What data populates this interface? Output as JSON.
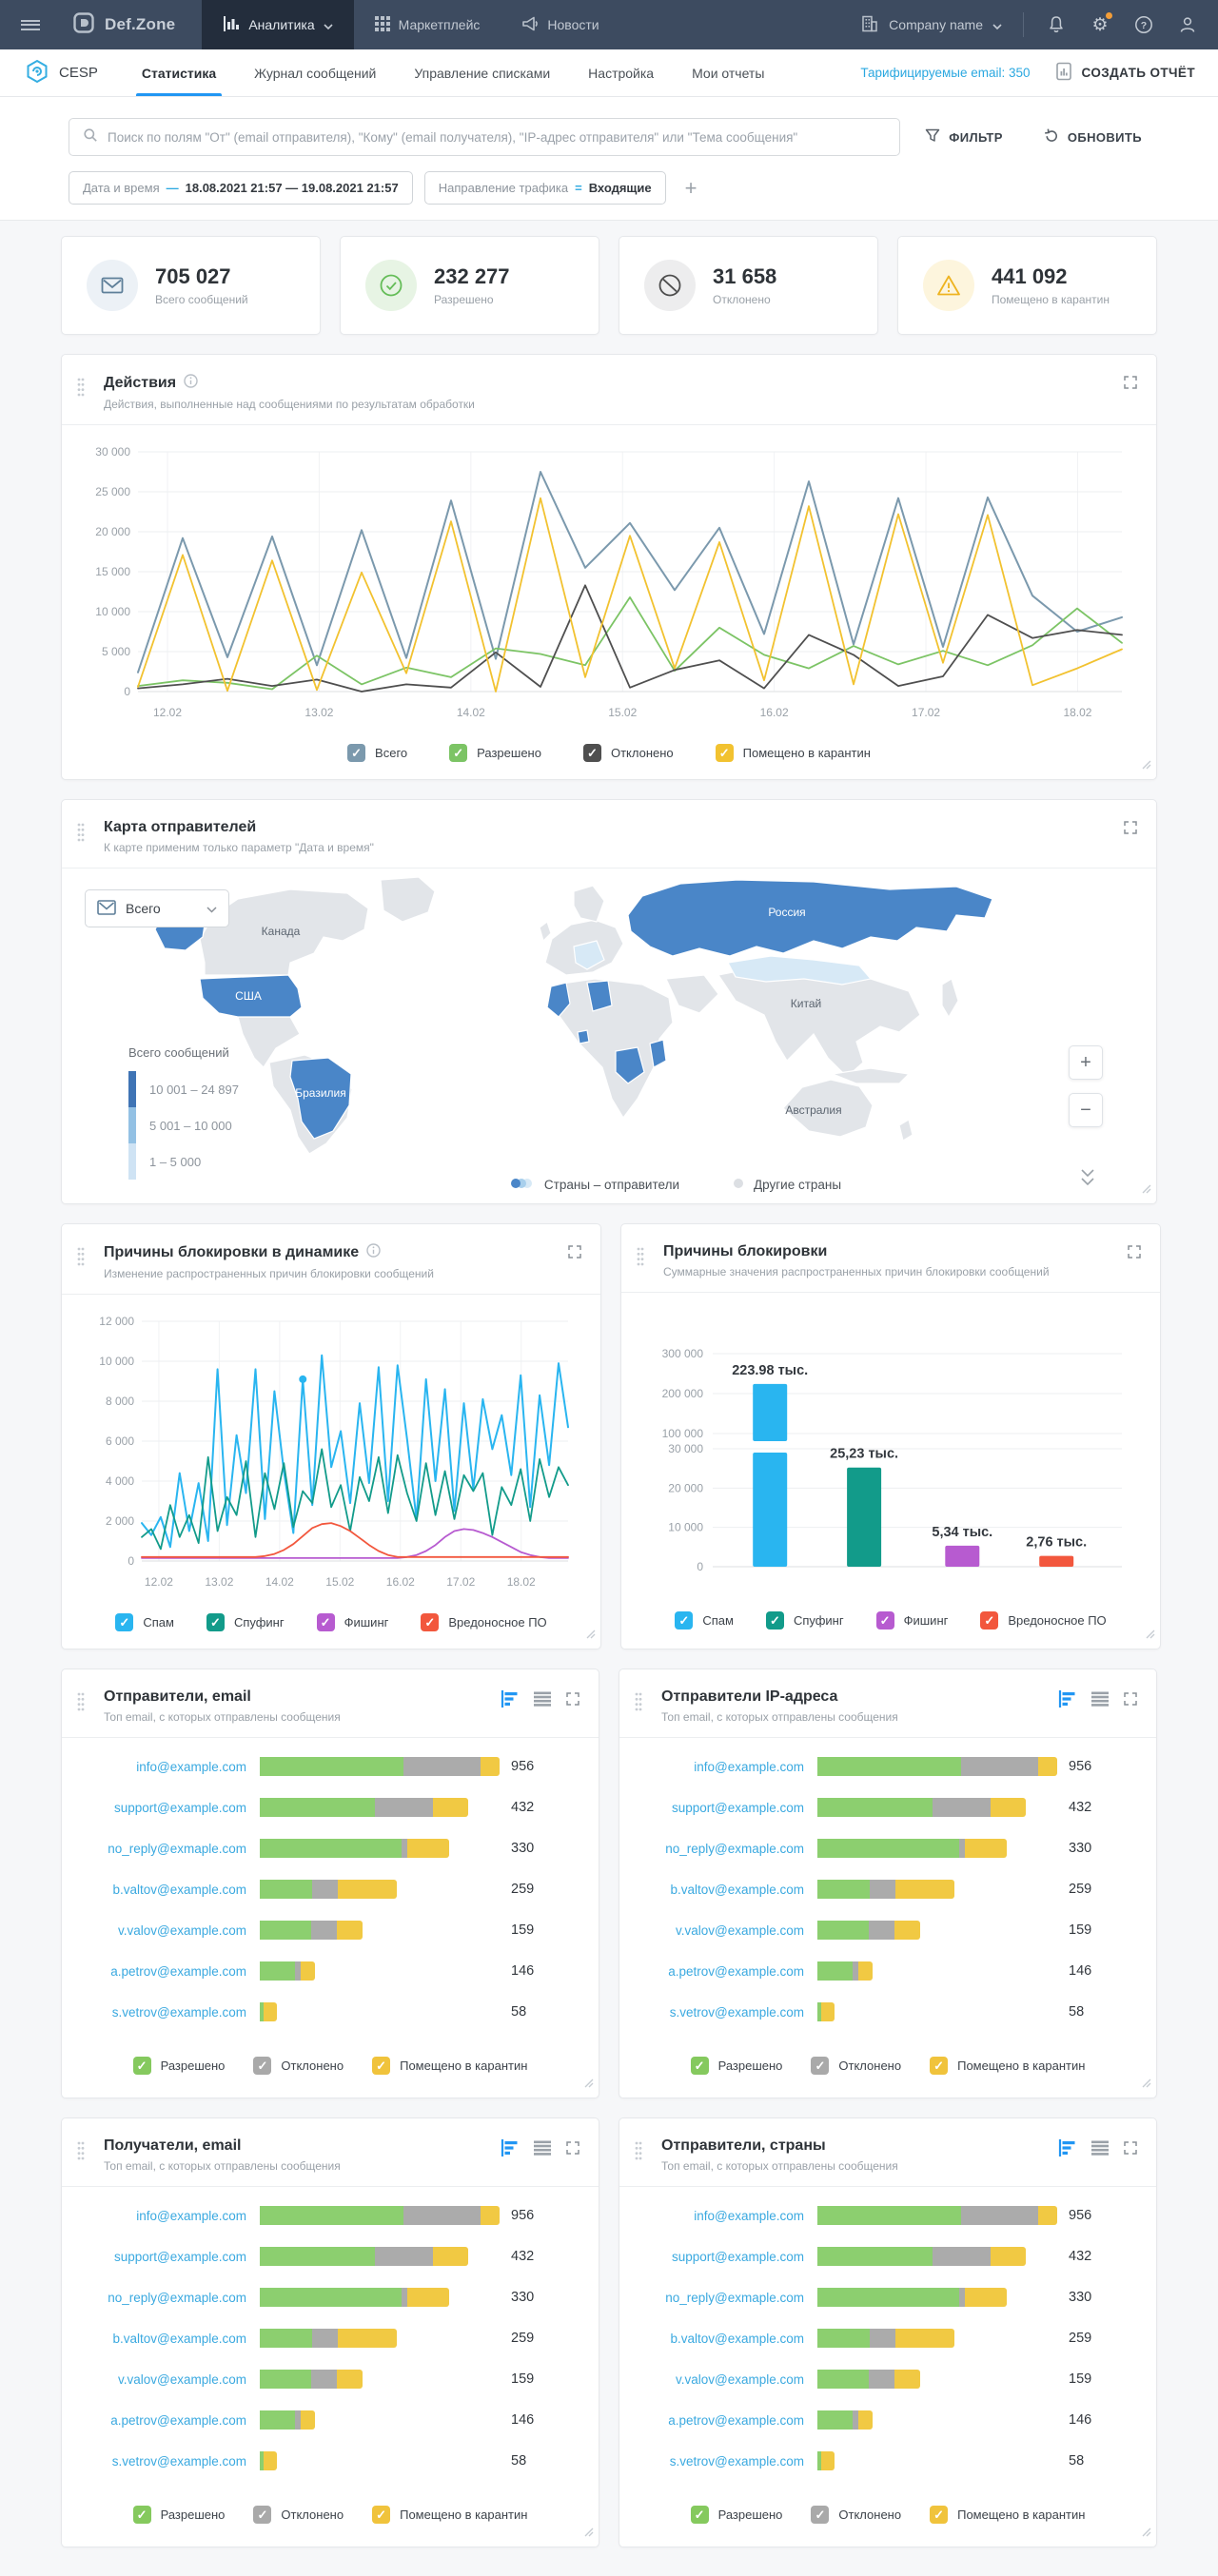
{
  "colors": {
    "accent": "#2196f3",
    "link_blue": "#3aa9e0",
    "navbar": "#3d4b60",
    "total_line": "#7b99ad",
    "allowed_green": "#7cc465",
    "rejected_dark": "#4f4f4f",
    "quarantine_yellow": "#f2c230",
    "spam_cyan": "#29b5f0",
    "spoofing_teal": "#129b8a",
    "phishing_purple": "#b75bd0",
    "malware_red": "#f2573d",
    "bar_green": "#8ccf6f",
    "bar_gray": "#ababab",
    "bar_yellow": "#f1c943",
    "map_blue": "#4a86c8",
    "map_blue_mid": "#a8cfec",
    "map_blue_light": "#d7e9f6",
    "map_land": "#e2e5e9"
  },
  "icons": {
    "check": "✓",
    "plus": "+",
    "gear": "⚙"
  },
  "topnav": {
    "brand": "Def.Zone",
    "items": [
      {
        "label": "Аналитика"
      },
      {
        "label": "Маркетплейс"
      },
      {
        "label": "Новости"
      }
    ],
    "company": "Company name"
  },
  "subnav": {
    "product": "CESP",
    "tabs": [
      {
        "label": "Статистика"
      },
      {
        "label": "Журнал сообщений"
      },
      {
        "label": "Управление списками"
      },
      {
        "label": "Настройка"
      },
      {
        "label": "Мои отчеты"
      }
    ],
    "billable_link": "Тарифицируемые email: 350",
    "create_report": "СОЗДАТЬ ОТЧЁТ"
  },
  "filters": {
    "search_placeholder": "Поиск по полям \"От\" (email отправителя), \"Кому\" (email получателя), \"IP-адрес отправителя\" или \"Тема сообщения\"",
    "filter_button": "ФИЛЬТР",
    "refresh_button": "ОБНОВИТЬ",
    "chips": [
      {
        "label": "Дата и время",
        "op": "—",
        "value": "18.08.2021 21:57 — 19.08.2021 21:57"
      },
      {
        "label": "Направление трафика",
        "op": "=",
        "value": "Входящие"
      }
    ]
  },
  "stats": [
    {
      "value": "705 027",
      "label": "Всего сообщений"
    },
    {
      "value": "232 277",
      "label": "Разрешено"
    },
    {
      "value": "31 658",
      "label": "Отклонено"
    },
    {
      "value": "441 092",
      "label": "Помещено в карантин"
    }
  ],
  "actions_card": {
    "title": "Действия",
    "subtitle": "Действия, выполненные над сообщениями по результатам обработки",
    "chart_data": {
      "type": "line",
      "x_labels": [
        "12.02",
        "13.02",
        "14.02",
        "15.02",
        "16.02",
        "17.02",
        "18.02"
      ],
      "y_ticks": [
        "0",
        "5 000",
        "10 000",
        "15 000",
        "20 000",
        "25 000",
        "30 000"
      ],
      "ymax": 30000,
      "series": [
        {
          "name": "Всего",
          "color": "#7b99ad",
          "width": 2,
          "values": [
            2400,
            19200,
            4300,
            19400,
            3300,
            20200,
            4200,
            23900,
            4100,
            27500,
            15500,
            21100,
            12700,
            20500,
            7200,
            26300,
            5900,
            24200,
            5600,
            24300,
            12000,
            7500,
            9300
          ]
        },
        {
          "name": "Разрешено",
          "color": "#7cc465",
          "width": 1.8,
          "values": [
            700,
            1400,
            1100,
            300,
            4500,
            900,
            3000,
            1800,
            5400,
            4700,
            3300,
            11800,
            2600,
            8000,
            4600,
            2900,
            5700,
            3400,
            5100,
            3300,
            5800,
            10400,
            6100
          ]
        },
        {
          "name": "Отклонено",
          "color": "#4f4f4f",
          "width": 1.8,
          "values": [
            400,
            900,
            1600,
            700,
            1500,
            0,
            900,
            500,
            4900,
            600,
            13300,
            500,
            2700,
            3900,
            400,
            7100,
            4600,
            700,
            1900,
            9600,
            6700,
            7700,
            7100
          ]
        },
        {
          "name": "Помещено в карантин",
          "color": "#f2c230",
          "width": 1.8,
          "values": [
            600,
            17100,
            100,
            16400,
            200,
            14900,
            2300,
            21300,
            0,
            24200,
            1800,
            19500,
            2900,
            18700,
            1400,
            23200,
            900,
            22200,
            3600,
            22100,
            800,
            2900,
            5300
          ]
        }
      ]
    }
  },
  "map_card": {
    "title": "Карта отправителей",
    "subtitle": "К карте применим только параметр \"Дата и время\"",
    "dropdown_value": "Всего",
    "legend_title": "Всего сообщений",
    "legend_ranges": [
      {
        "label": "10 001 – 24 897",
        "color": "#3f74b5"
      },
      {
        "label": "5 001 – 10 000",
        "color": "#93c1e4"
      },
      {
        "label": "1 – 5 000",
        "color": "#cfe3f4"
      }
    ],
    "bottom_legend": [
      {
        "label": "Страны – отправители"
      },
      {
        "label": "Другие страны"
      }
    ],
    "labels": [
      "Канада",
      "США",
      "Россия",
      "Китай",
      "Бразилия",
      "Австралия"
    ]
  },
  "dynamics_card": {
    "title": "Причины блокировки в динамике",
    "subtitle": "Изменение распространенных причин блокировки сообщений",
    "chart_data": {
      "type": "line",
      "x_labels": [
        "12.02",
        "13.02",
        "14.02",
        "15.02",
        "16.02",
        "17.02",
        "18.02"
      ],
      "y_ticks": [
        "0",
        "2 000",
        "4 000",
        "6 000",
        "8 000",
        "10 000",
        "12 000"
      ],
      "ymax": 12000,
      "marker": {
        "series": 0,
        "index": 17
      },
      "series": [
        {
          "name": "Спам",
          "color": "#29b5f0",
          "width": 2,
          "values": [
            1900,
            1300,
            2200,
            700,
            4400,
            1500,
            3900,
            1000,
            9600,
            1800,
            6300,
            3400,
            9600,
            2100,
            8500,
            4500,
            1400,
            9100,
            2800,
            10300,
            4700,
            6500,
            2900,
            7900,
            3900,
            9700,
            3000,
            9800,
            6100,
            2100,
            9100,
            4000,
            8600,
            2500,
            7900,
            3600,
            8100,
            5600,
            7300,
            4300,
            9300,
            2700,
            8300,
            4800,
            9900,
            6700
          ]
        },
        {
          "name": "Спуфинг",
          "color": "#129b8a",
          "width": 1.8,
          "values": [
            1200,
            1600,
            600,
            2800,
            1200,
            2300,
            900,
            5200,
            1500,
            3200,
            2300,
            5000,
            1200,
            4400,
            2600,
            4900,
            1700,
            3500,
            2900,
            5600,
            2700,
            3800,
            1500,
            4200,
            3000,
            5200,
            2400,
            5300,
            3400,
            2000,
            4900,
            2300,
            4500,
            2100,
            4300,
            3500,
            4400,
            1300,
            3700,
            2800,
            4600,
            2000,
            5100,
            3200,
            4700,
            3800
          ]
        },
        {
          "name": "Фишинг",
          "color": "#b75bd0",
          "width": 1.8,
          "values": [
            150,
            150,
            150,
            150,
            150,
            150,
            150,
            150,
            150,
            150,
            150,
            150,
            150,
            150,
            150,
            150,
            150,
            150,
            150,
            150,
            150,
            150,
            150,
            150,
            150,
            150,
            150,
            150,
            200,
            300,
            500,
            800,
            1200,
            1500,
            1600,
            1550,
            1400,
            1200,
            950,
            700,
            450,
            300,
            200,
            150,
            150,
            150
          ]
        },
        {
          "name": "Вредоносное ПО",
          "color": "#f2573d",
          "width": 1.8,
          "values": [
            200,
            200,
            200,
            200,
            200,
            200,
            200,
            200,
            200,
            200,
            200,
            200,
            200,
            250,
            350,
            550,
            850,
            1250,
            1650,
            1850,
            1900,
            1750,
            1500,
            1150,
            800,
            500,
            300,
            200,
            200,
            200,
            200,
            200,
            200,
            200,
            200,
            200,
            200,
            200,
            200,
            200,
            200,
            200,
            200,
            200,
            200,
            200
          ]
        }
      ]
    }
  },
  "reasons_card": {
    "title": "Причины блокировки",
    "subtitle": "Суммарные значения распространенных причин блокировки сообщений",
    "chart_data": {
      "type": "bar",
      "categories": [
        "Спам",
        "Спуфинг",
        "Фишинг",
        "Вредоносное ПО"
      ],
      "values": [
        223980,
        25230,
        5340,
        2760
      ],
      "value_labels": [
        "223.98 тыс.",
        "25,23 тыс.",
        "5,34 тыс.",
        "2,76 тыс."
      ],
      "colors": [
        "#29b5f0",
        "#129b8a",
        "#b75bd0",
        "#f2573d"
      ],
      "y_ticks_lower": [
        "0",
        "10 000",
        "20 000",
        "30 000"
      ],
      "y_ticks_upper": [
        "100 000",
        "200 000",
        "300 000"
      ],
      "axis_break": [
        30000,
        100000
      ]
    }
  },
  "top_legend": [
    {
      "label": "Разрешено",
      "color": "#85c95e"
    },
    {
      "label": "Отклонено",
      "color": "#a9a9a9"
    },
    {
      "label": "Помещено в карантин",
      "color": "#f0c33c"
    }
  ],
  "top_cards": [
    {
      "title": "Отправители, email",
      "subtitle": "Топ email, с которых отправлены сообщения",
      "rows": [
        {
          "email": "info@example.com",
          "value": "956",
          "bar": 100,
          "segments": [
            60,
            32,
            8
          ]
        },
        {
          "email": "support@example.com",
          "value": "432",
          "bar": 87,
          "segments": [
            55,
            28,
            17
          ]
        },
        {
          "email": "no_reply@exmaple.com",
          "value": "330",
          "bar": 79,
          "segments": [
            75,
            3,
            22
          ]
        },
        {
          "email": "b.valtov@example.com",
          "value": "259",
          "bar": 57,
          "segments": [
            38,
            19,
            43
          ]
        },
        {
          "email": "v.valov@example.com",
          "value": "159",
          "bar": 43,
          "segments": [
            50,
            25,
            25
          ]
        },
        {
          "email": "a.petrov@example.com",
          "value": "146",
          "bar": 23,
          "segments": [
            64,
            11,
            25
          ]
        },
        {
          "email": "s.vetrov@example.com",
          "value": "58",
          "bar": 7,
          "segments": [
            20,
            0,
            80
          ]
        }
      ]
    },
    {
      "title": "Отправители IP-адреса",
      "subtitle": "Топ email, с которых отправлены сообщения",
      "rows": [
        {
          "email": "info@example.com",
          "value": "956",
          "bar": 100,
          "segments": [
            60,
            32,
            8
          ]
        },
        {
          "email": "support@example.com",
          "value": "432",
          "bar": 87,
          "segments": [
            55,
            28,
            17
          ]
        },
        {
          "email": "no_reply@exmaple.com",
          "value": "330",
          "bar": 79,
          "segments": [
            75,
            3,
            22
          ]
        },
        {
          "email": "b.valtov@example.com",
          "value": "259",
          "bar": 57,
          "segments": [
            38,
            19,
            43
          ]
        },
        {
          "email": "v.valov@example.com",
          "value": "159",
          "bar": 43,
          "segments": [
            50,
            25,
            25
          ]
        },
        {
          "email": "a.petrov@example.com",
          "value": "146",
          "bar": 23,
          "segments": [
            64,
            11,
            25
          ]
        },
        {
          "email": "s.vetrov@example.com",
          "value": "58",
          "bar": 7,
          "segments": [
            20,
            0,
            80
          ]
        }
      ]
    },
    {
      "title": "Получатели, email",
      "subtitle": "Топ email, с которых отправлены сообщения",
      "rows": [
        {
          "email": "info@example.com",
          "value": "956",
          "bar": 100,
          "segments": [
            60,
            32,
            8
          ]
        },
        {
          "email": "support@example.com",
          "value": "432",
          "bar": 87,
          "segments": [
            55,
            28,
            17
          ]
        },
        {
          "email": "no_reply@exmaple.com",
          "value": "330",
          "bar": 79,
          "segments": [
            75,
            3,
            22
          ]
        },
        {
          "email": "b.valtov@example.com",
          "value": "259",
          "bar": 57,
          "segments": [
            38,
            19,
            43
          ]
        },
        {
          "email": "v.valov@example.com",
          "value": "159",
          "bar": 43,
          "segments": [
            50,
            25,
            25
          ]
        },
        {
          "email": "a.petrov@example.com",
          "value": "146",
          "bar": 23,
          "segments": [
            64,
            11,
            25
          ]
        },
        {
          "email": "s.vetrov@example.com",
          "value": "58",
          "bar": 7,
          "segments": [
            20,
            0,
            80
          ]
        }
      ]
    },
    {
      "title": "Отправители, страны",
      "subtitle": "Топ email, с которых отправлены сообщения",
      "rows": [
        {
          "email": "info@example.com",
          "value": "956",
          "bar": 100,
          "segments": [
            60,
            32,
            8
          ]
        },
        {
          "email": "support@example.com",
          "value": "432",
          "bar": 87,
          "segments": [
            55,
            28,
            17
          ]
        },
        {
          "email": "no_reply@exmaple.com",
          "value": "330",
          "bar": 79,
          "segments": [
            75,
            3,
            22
          ]
        },
        {
          "email": "b.valtov@example.com",
          "value": "259",
          "bar": 57,
          "segments": [
            38,
            19,
            43
          ]
        },
        {
          "email": "v.valov@example.com",
          "value": "159",
          "bar": 43,
          "segments": [
            50,
            25,
            25
          ]
        },
        {
          "email": "a.petrov@example.com",
          "value": "146",
          "bar": 23,
          "segments": [
            64,
            11,
            25
          ]
        },
        {
          "email": "s.vetrov@example.com",
          "value": "58",
          "bar": 7,
          "segments": [
            20,
            0,
            80
          ]
        }
      ]
    }
  ]
}
